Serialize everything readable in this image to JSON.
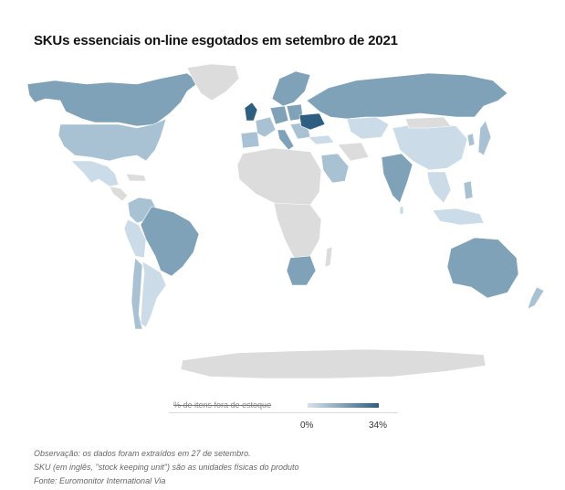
{
  "title": "SKUs essenciais on-line esgotados em setembro de 2021",
  "legend": {
    "label": "% de itens fora de estoque",
    "min_label": "0%",
    "max_label": "34%",
    "color_low": "#d7e2ea",
    "color_high": "#2e5f80"
  },
  "colors": {
    "no_data": "#dcdcdc",
    "level_1": "#cbdce8",
    "level_2": "#a8c2d3",
    "level_3": "#7fa2b9",
    "level_4": "#2e5f80"
  },
  "notes": [
    "Observação: os dados foram extraídos em 27 de setembro.",
    "SKU (em inglês, \"stock keeping unit\") são as unidades físicas do produto",
    "Fonte: Euromonitor International Via"
  ]
}
